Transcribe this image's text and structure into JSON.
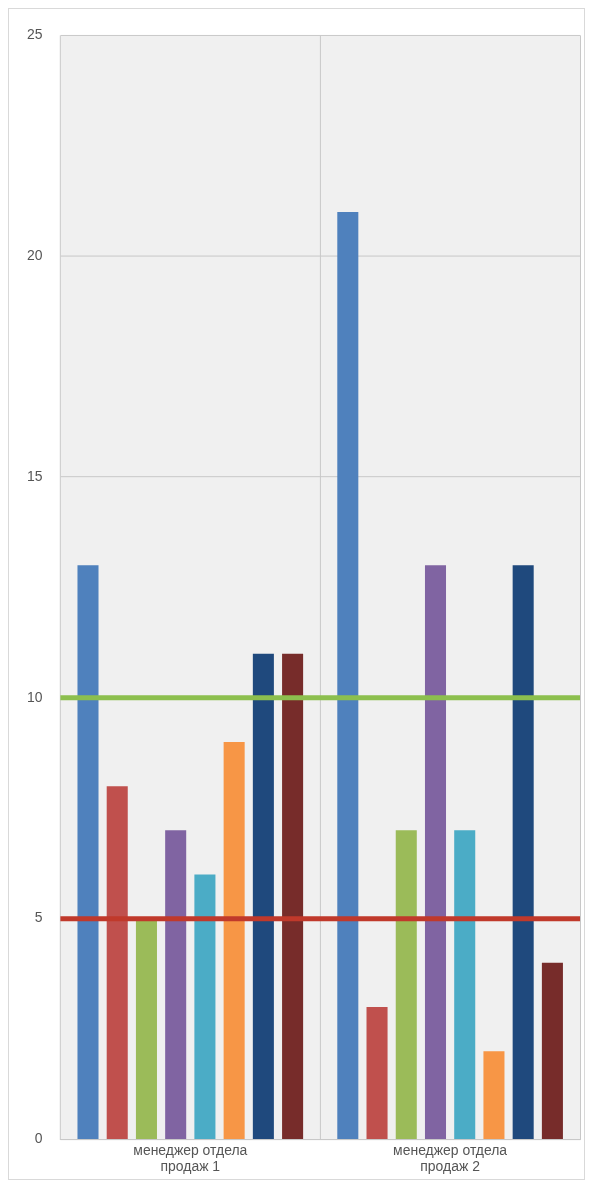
{
  "chart_data": {
    "type": "bar",
    "categories": [
      "менеджер отдела продаж 1",
      "менеджер отдела продаж 2"
    ],
    "series": [
      {
        "color": "#4f81bd",
        "values": [
          13,
          21
        ]
      },
      {
        "color": "#c0504d",
        "values": [
          8,
          3
        ]
      },
      {
        "color": "#9bbb59",
        "values": [
          5,
          7
        ]
      },
      {
        "color": "#8064a2",
        "values": [
          7,
          13
        ]
      },
      {
        "color": "#4bacc6",
        "values": [
          6,
          7
        ]
      },
      {
        "color": "#f79646",
        "values": [
          9,
          2
        ]
      },
      {
        "color": "#1f497d",
        "values": [
          11,
          13
        ]
      },
      {
        "color": "#772c2a",
        "values": [
          11,
          4
        ]
      }
    ],
    "ylim": [
      0,
      25
    ],
    "yticks": [
      0,
      5,
      10,
      15,
      20,
      25
    ],
    "grid": true,
    "legend": false,
    "ref_lines": [
      {
        "axis": "y",
        "value": 10,
        "color": "#8cbf4e"
      },
      {
        "axis": "y",
        "value": 5,
        "color": "#c0392b"
      }
    ]
  }
}
